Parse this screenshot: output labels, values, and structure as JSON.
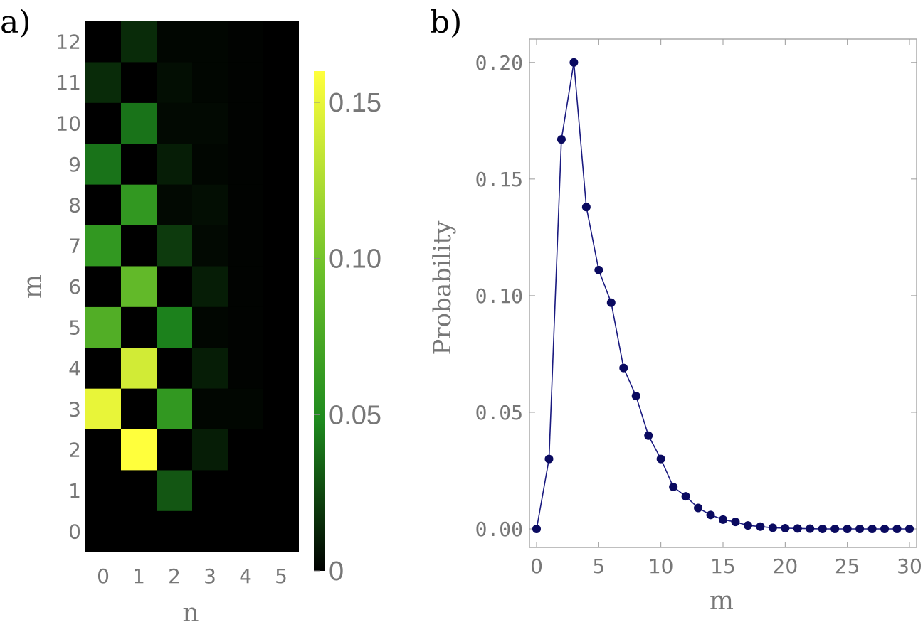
{
  "panels": {
    "a_label": "a)",
    "b_label": "b)"
  },
  "chart_data": [
    {
      "type": "heatmap",
      "panel": "a)",
      "xlabel": "n",
      "ylabel": "m",
      "x_categories": [
        "0",
        "1",
        "2",
        "3",
        "4",
        "5"
      ],
      "y_categories": [
        "0",
        "1",
        "2",
        "3",
        "4",
        "5",
        "6",
        "7",
        "8",
        "9",
        "10",
        "11",
        "12"
      ],
      "values": [
        [
          0,
          0,
          0,
          0,
          0,
          0
        ],
        [
          0,
          0,
          0.03,
          0,
          0,
          0
        ],
        [
          0,
          0.16,
          0,
          0.01,
          0,
          0
        ],
        [
          0.15,
          0,
          0.06,
          0.002,
          0.002,
          0
        ],
        [
          0,
          0.14,
          0,
          0.01,
          0.001,
          0
        ],
        [
          0.08,
          0,
          0.045,
          0.002,
          0.001,
          0
        ],
        [
          0,
          0.09,
          0,
          0.01,
          0.001,
          0
        ],
        [
          0.06,
          0,
          0.02,
          0.003,
          0.001,
          0
        ],
        [
          0,
          0.06,
          0.003,
          0.005,
          0.001,
          0
        ],
        [
          0.04,
          0,
          0.01,
          0.002,
          0.001,
          0
        ],
        [
          0,
          0.04,
          0.003,
          0.003,
          0.001,
          0
        ],
        [
          0.015,
          0,
          0.005,
          0.002,
          0.001,
          0
        ],
        [
          0,
          0.015,
          0.002,
          0.002,
          0.001,
          0
        ]
      ],
      "colorbar": {
        "min": 0,
        "max": 0.16,
        "ticks": [
          0,
          0.05,
          0.1,
          0.15
        ],
        "tick_labels": [
          "0",
          "0.05",
          "0.10",
          "0.15"
        ],
        "colors": [
          "#000000",
          "#1e8a1e",
          "#6cc02a",
          "#ffff3c"
        ]
      }
    },
    {
      "type": "line",
      "panel": "b)",
      "xlabel": "m",
      "ylabel": "Probability",
      "xlim": [
        0,
        30
      ],
      "ylim": [
        0,
        0.21
      ],
      "x_ticks": [
        0,
        5,
        10,
        15,
        20,
        25,
        30
      ],
      "x_tick_labels": [
        "0",
        "5",
        "10",
        "15",
        "20",
        "25",
        "30"
      ],
      "y_ticks": [
        0,
        0.05,
        0.1,
        0.15,
        0.2
      ],
      "y_tick_labels": [
        "0.00",
        "0.05",
        "0.10",
        "0.15",
        "0.20"
      ],
      "line_color": "#1a1a80",
      "marker_color": "#0a0a60",
      "x": [
        0,
        1,
        2,
        3,
        4,
        5,
        6,
        7,
        8,
        9,
        10,
        11,
        12,
        13,
        14,
        15,
        16,
        17,
        18,
        19,
        20,
        21,
        22,
        23,
        24,
        25,
        26,
        27,
        28,
        29,
        30
      ],
      "y": [
        0,
        0.03,
        0.167,
        0.2,
        0.138,
        0.111,
        0.097,
        0.069,
        0.057,
        0.04,
        0.03,
        0.018,
        0.014,
        0.009,
        0.006,
        0.004,
        0.003,
        0.0015,
        0.001,
        0.0005,
        0.0003,
        0.0002,
        0.0001,
        0,
        0,
        0,
        0,
        0,
        0,
        0,
        0
      ]
    }
  ]
}
